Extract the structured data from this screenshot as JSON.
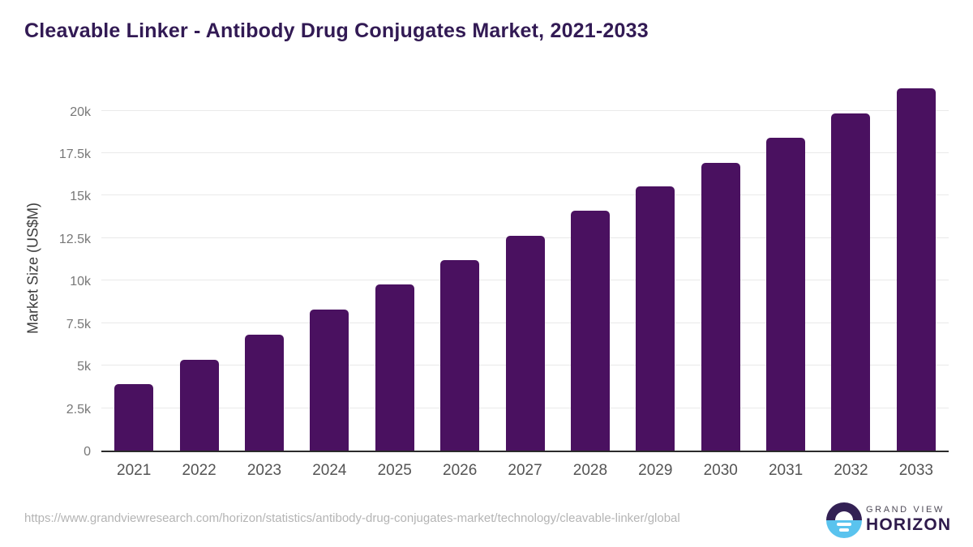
{
  "chart_data": {
    "type": "bar",
    "title": "Cleavable Linker - Antibody Drug Conjugates Market, 2021-2033",
    "ylabel": "Market Size (US$M)",
    "xlabel": "",
    "categories": [
      "2021",
      "2022",
      "2023",
      "2024",
      "2025",
      "2026",
      "2027",
      "2028",
      "2029",
      "2030",
      "2031",
      "2032",
      "2033"
    ],
    "values": [
      3900,
      5330,
      6820,
      8300,
      9760,
      11220,
      12650,
      14100,
      15550,
      16950,
      18420,
      19850,
      21300
    ],
    "ylim": [
      0,
      21600
    ],
    "ytick_values": [
      0,
      2500,
      5000,
      7500,
      10000,
      12500,
      15000,
      17500,
      20000
    ],
    "ytick_labels": [
      "0",
      "2.5k",
      "5k",
      "7.5k",
      "10k",
      "12.5k",
      "15k",
      "17.5k",
      "20k"
    ],
    "grid": true,
    "legend": "none",
    "bar_color": "#4a1160"
  },
  "theme": {
    "title_color": "#321a54",
    "bar_color": "#4a1160",
    "axis_color": "#2b2b2b",
    "grid_color": "#e9e9e9",
    "ytick_color": "#777777",
    "xtick_color": "#545454",
    "url_color": "#b4b4b4",
    "logo_dark_purple": "#332154",
    "logo_light_blue": "#5ac3ee"
  },
  "footer": {
    "source_url": "https://www.grandviewresearch.com/horizon/statistics/antibody-drug-conjugates-market/technology/cleavable-linker/global",
    "logo": {
      "line1": "GRAND VIEW",
      "line2": "HORIZON",
      "icon": "horizon-sun-icon"
    }
  }
}
